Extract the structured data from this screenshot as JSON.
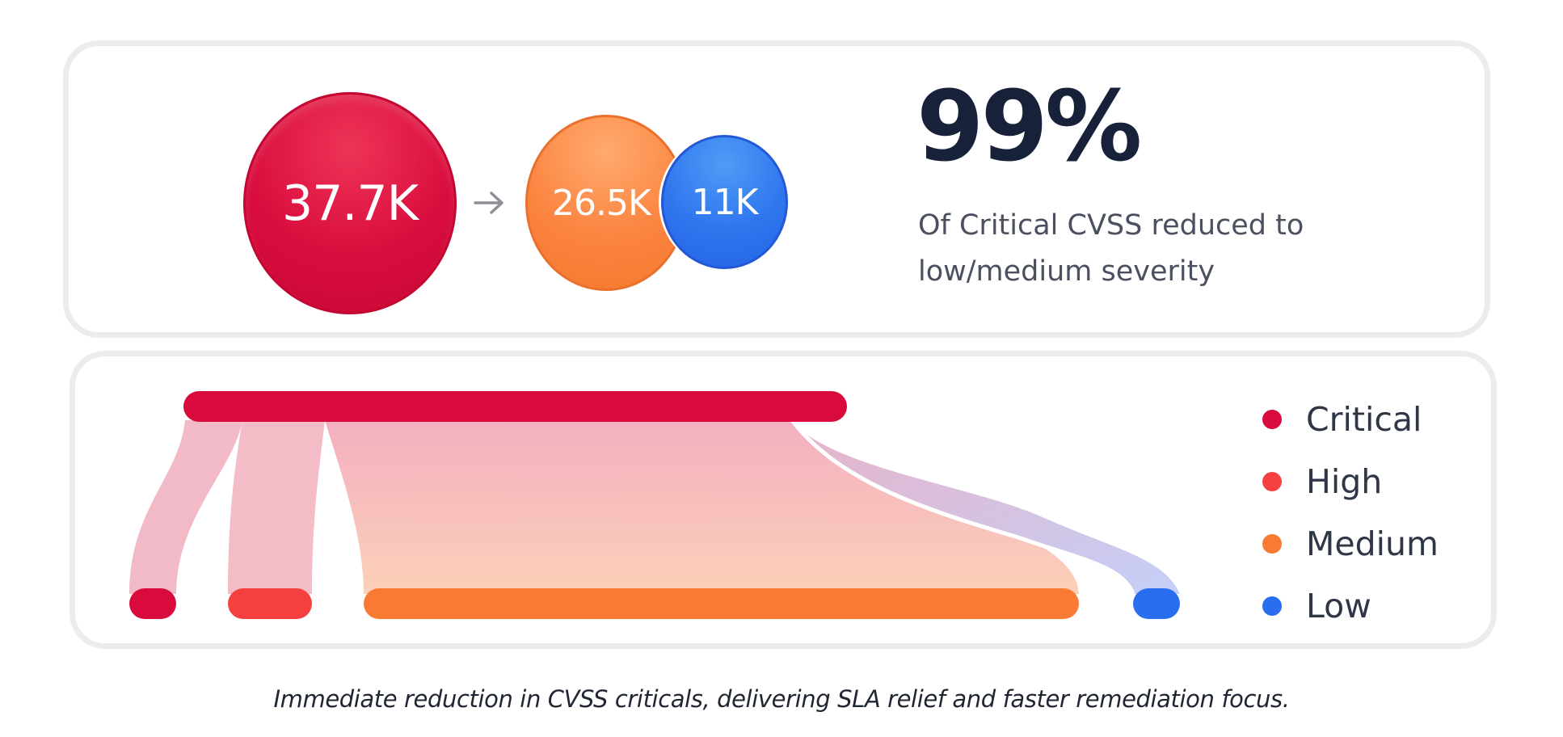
{
  "summary": {
    "before_count": "37.7K",
    "after_medium_count": "26.5K",
    "after_low_count": "11K",
    "stat_value": "99%",
    "stat_description": "Of Critical CVSS reduced to low/medium severity"
  },
  "legend": {
    "items": [
      {
        "label": "Critical",
        "color": "#d90b3c"
      },
      {
        "label": "High",
        "color": "#f5403f"
      },
      {
        "label": "Medium",
        "color": "#f97a33"
      },
      {
        "label": "Low",
        "color": "#2a6ef0"
      }
    ]
  },
  "flow": {
    "source": "Critical",
    "targets": [
      "Critical",
      "High",
      "Medium",
      "Low"
    ]
  },
  "colors": {
    "critical": "#d90b3c",
    "high": "#f5403f",
    "medium": "#f97a33",
    "low": "#2a6ef0",
    "stat_text": "#17213a",
    "card_border": "#ececec"
  },
  "caption": "Immediate reduction in CVSS criticals, delivering SLA relief and faster remediation focus."
}
